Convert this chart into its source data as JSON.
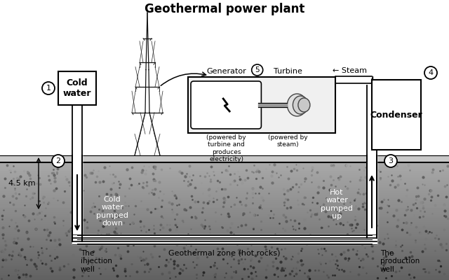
{
  "title": "Geothermal power plant",
  "title_fontsize": 12,
  "background_color": "#ffffff",
  "labels": {
    "cold_water": "Cold\nwater",
    "circle1": "1",
    "circle2": "2",
    "circle3": "3",
    "circle4": "4",
    "circle5": "5",
    "injection_well": "The\ninjection\nwell",
    "production_well": "The\nproduction\nwell",
    "depth": "4.5 km",
    "cold_water_down": "Cold\nwater\npumped\ndown",
    "hot_water_up": "Hot\nwater\npumped\nup",
    "geothermal_zone": "Geothermal zone (hot rocks)",
    "generator_label": "Generator",
    "turbine_label": "Turbine",
    "condenser_label": "Condenser",
    "steam_label": "← Steam",
    "gen_desc": "(powered by\nturbine and\nproduces\nelectricity)",
    "turb_desc": "(powered by\nsteam)"
  }
}
